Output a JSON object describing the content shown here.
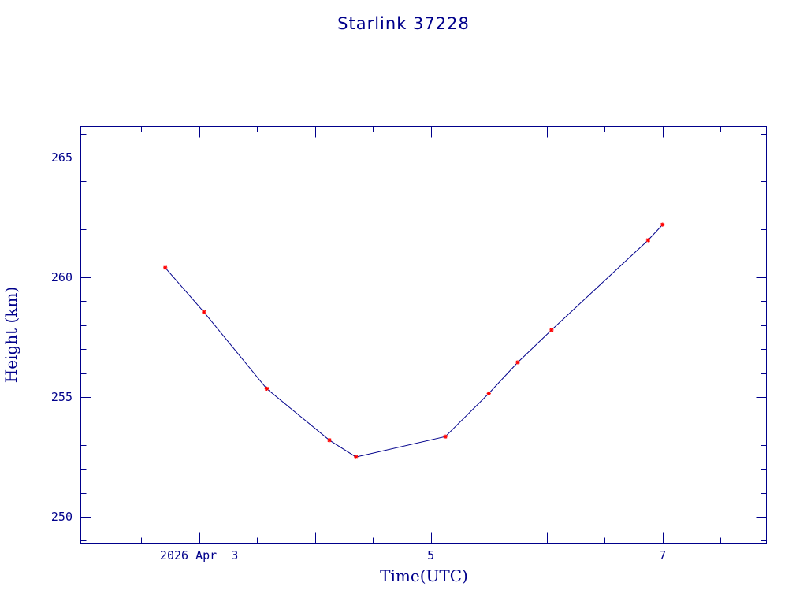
{
  "chart_data": {
    "type": "line",
    "title": "Starlink 37228",
    "xlabel": "Time(UTC)",
    "ylabel": "Height (km)",
    "x_unit": "days",
    "xlim": [
      "2026-04-01T23:30Z",
      "2026-04-07T21:30Z"
    ],
    "ylim": [
      248.9,
      266.3
    ],
    "x_ticks": [
      {
        "value": "2026-04-03T00:00Z",
        "label": "2026 Apr  3"
      },
      {
        "value": "2026-04-05T00:00Z",
        "label": "5"
      },
      {
        "value": "2026-04-07T00:00Z",
        "label": "7"
      }
    ],
    "y_ticks": [
      250,
      255,
      260,
      265
    ],
    "grid": false,
    "series": [
      {
        "x": [
          "2026-04-02T17:00Z",
          "2026-04-03T01:00Z",
          "2026-04-03T14:00Z",
          "2026-04-04T03:00Z",
          "2026-04-04T08:30Z",
          "2026-04-05T03:00Z",
          "2026-04-05T12:00Z",
          "2026-04-05T18:00Z",
          "2026-04-06T01:00Z",
          "2026-04-06T21:00Z",
          "2026-04-07T00:00Z"
        ],
        "y": [
          260.4,
          258.55,
          255.35,
          253.2,
          252.5,
          253.35,
          255.15,
          256.45,
          257.8,
          261.55,
          262.2
        ]
      }
    ],
    "colors": {
      "axes": "#00008b",
      "line": "#00008b",
      "marker": "#ff0000"
    }
  }
}
